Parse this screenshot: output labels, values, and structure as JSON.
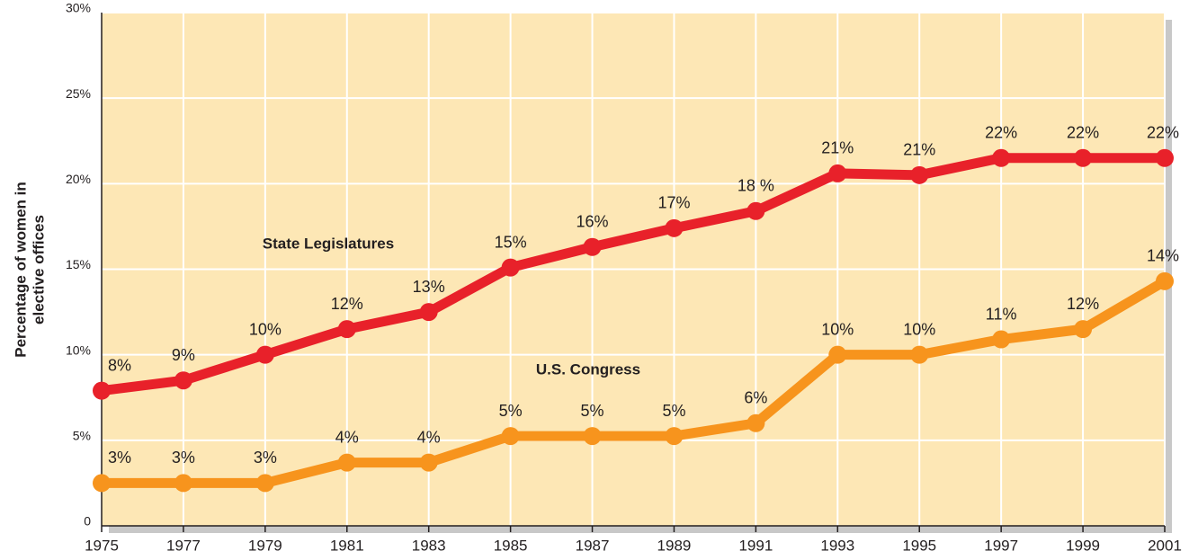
{
  "chart_data": {
    "type": "line",
    "ylabel": [
      "Percentage of women in",
      "elective offices"
    ],
    "x": [
      1975,
      1977,
      1979,
      1981,
      1983,
      1985,
      1987,
      1989,
      1991,
      1993,
      1995,
      1997,
      1999,
      2001
    ],
    "xlim": [
      1975,
      2001
    ],
    "xticks": [
      1975,
      1977,
      1979,
      1981,
      1983,
      1985,
      1987,
      1989,
      1991,
      1993,
      1995,
      1997,
      1999,
      2001
    ],
    "ylim": [
      0,
      30
    ],
    "yticks": [
      0,
      {
        "value": 5,
        "label": "5%"
      },
      {
        "value": 10,
        "label": "10%"
      },
      {
        "value": 15,
        "label": "15%"
      },
      {
        "value": 20,
        "label": "20%"
      },
      {
        "value": 25,
        "label": "25%"
      },
      {
        "value": 30,
        "label": "30%"
      }
    ],
    "grid": true,
    "series": [
      {
        "name": "State Legislatures",
        "color": "#e8212a",
        "values": [
          7.9,
          8.5,
          10.0,
          11.5,
          12.5,
          15.1,
          16.3,
          17.4,
          18.4,
          20.6,
          20.5,
          21.5,
          21.5,
          21.5
        ],
        "value_labels": [
          "8%",
          "9%",
          "10%",
          "12%",
          "13%",
          "15%",
          "16%",
          "17%",
          "18 %",
          "21%",
          "21%",
          "22%",
          "22%",
          "22%"
        ]
      },
      {
        "name": "U.S. Congress",
        "color": "#f7941d",
        "values": [
          2.5,
          2.5,
          2.5,
          3.7,
          3.7,
          5.25,
          5.25,
          5.25,
          6.0,
          10.0,
          10.0,
          10.9,
          11.5,
          14.3
        ],
        "value_labels": [
          "3%",
          "3%",
          "3%",
          "4%",
          "4%",
          "5%",
          "5%",
          "5%",
          "6%",
          "10%",
          "10%",
          "11%",
          "12%",
          "14%"
        ]
      }
    ]
  }
}
